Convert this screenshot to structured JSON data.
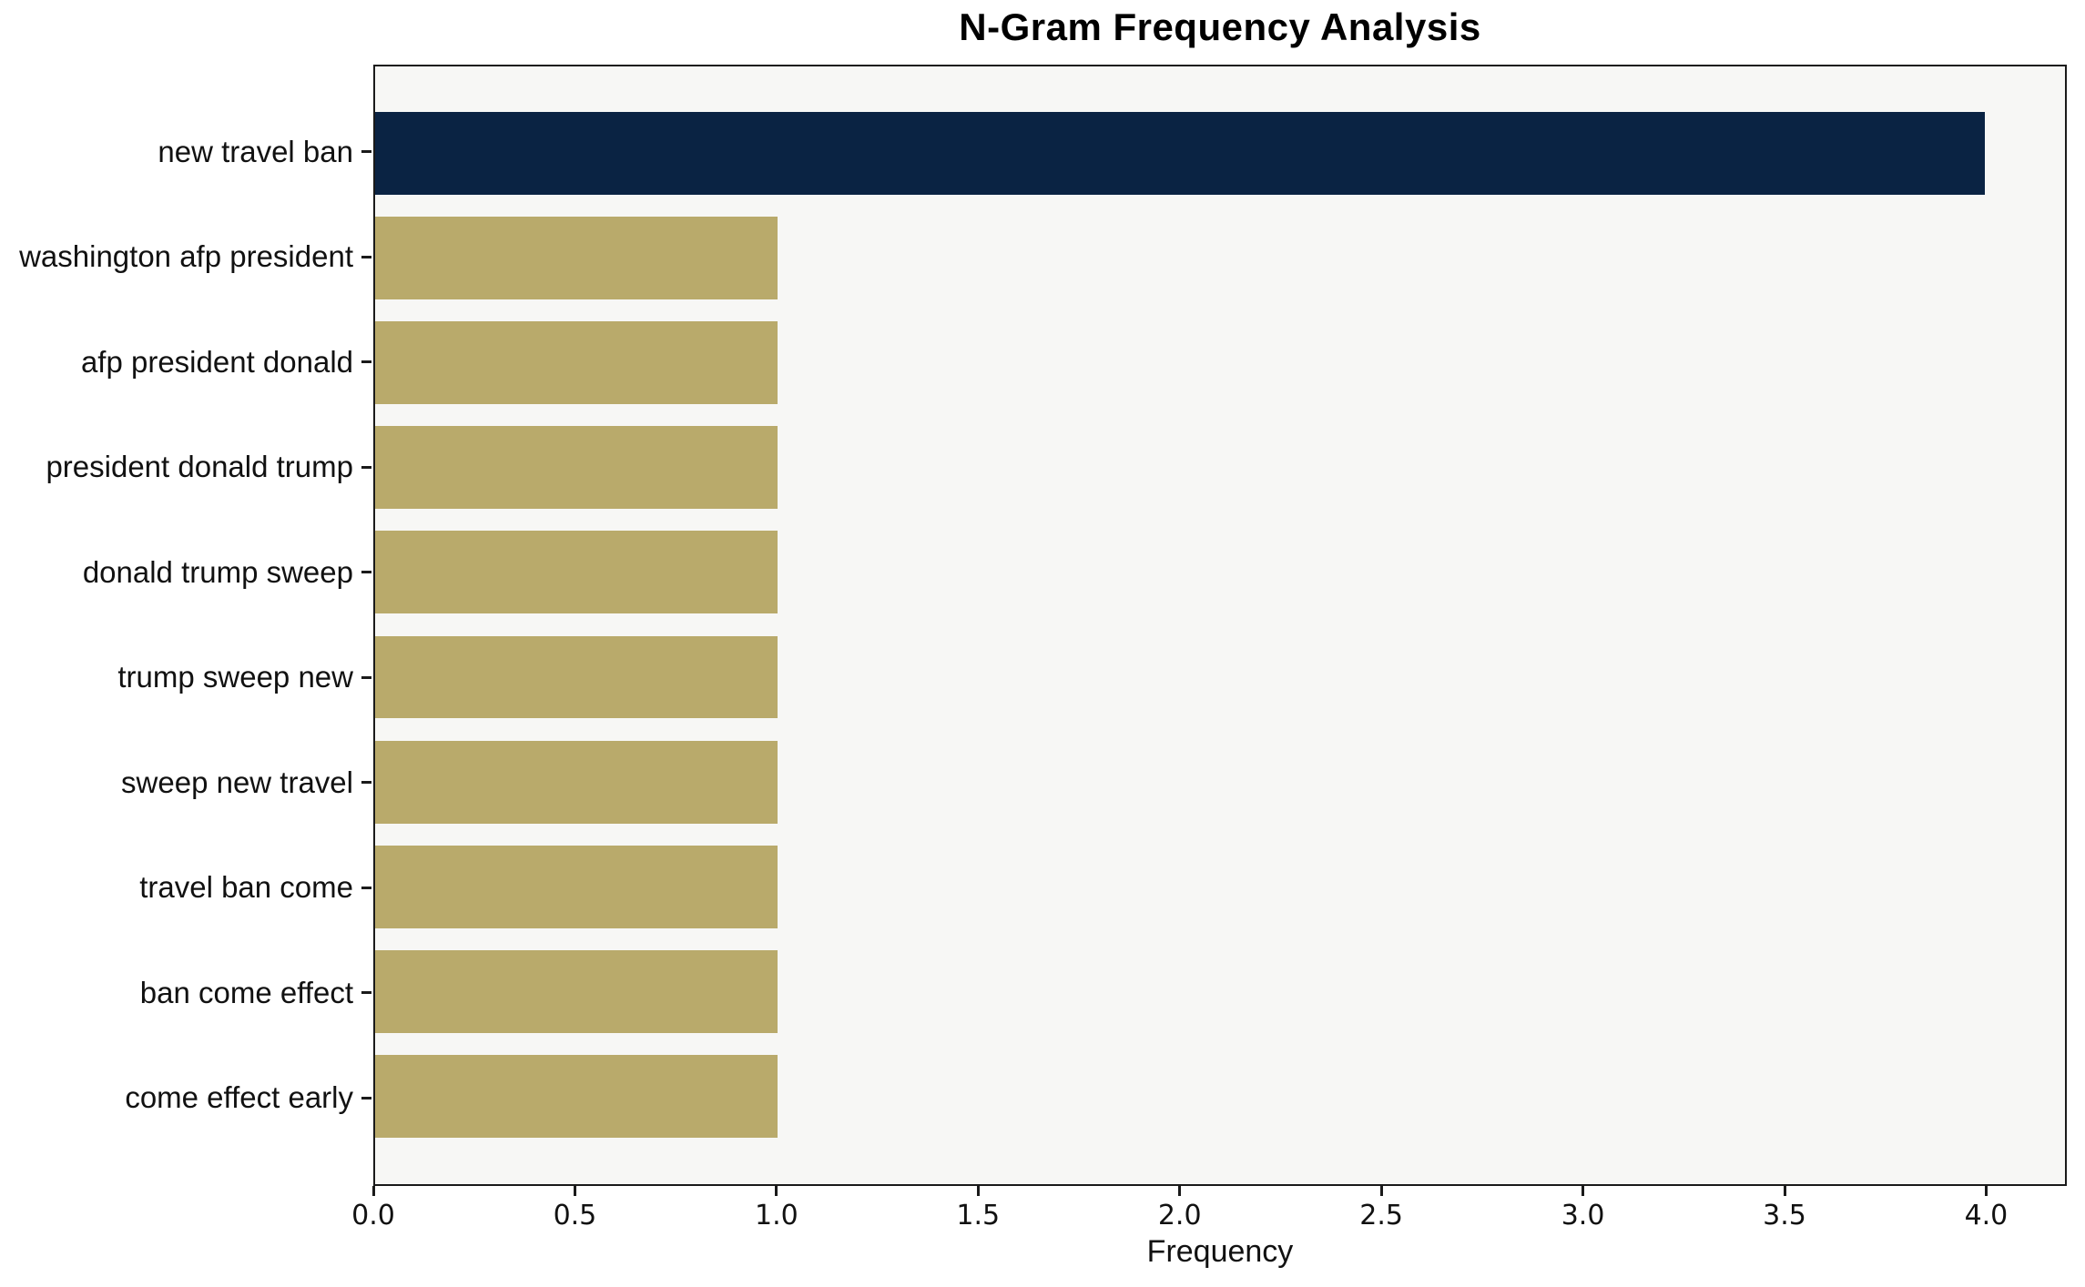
{
  "chart_data": {
    "type": "bar",
    "orientation": "horizontal",
    "title": "N-Gram Frequency Analysis",
    "xlabel": "Frequency",
    "ylabel": "",
    "categories": [
      "new travel ban",
      "washington afp president",
      "afp president donald",
      "president donald trump",
      "donald trump sweep",
      "trump sweep new",
      "sweep new travel",
      "travel ban come",
      "ban come effect",
      "come effect early"
    ],
    "values": [
      4,
      1,
      1,
      1,
      1,
      1,
      1,
      1,
      1,
      1
    ],
    "xlim": [
      0,
      4.2
    ],
    "xticks": [
      0,
      0.5,
      1,
      1.5,
      2,
      2.5,
      3,
      3.5,
      4
    ],
    "xtick_labels": [
      "0.0",
      "0.5",
      "1.0",
      "1.5",
      "2.0",
      "2.5",
      "3.0",
      "3.5",
      "4.0"
    ],
    "grid": false,
    "legend": null,
    "bar_colors": [
      "#0a2343",
      "#b9aa6b",
      "#b9aa6b",
      "#b9aa6b",
      "#b9aa6b",
      "#b9aa6b",
      "#b9aa6b",
      "#b9aa6b",
      "#b9aa6b",
      "#b9aa6b"
    ],
    "colors": {
      "highlight_bar": "#0a2343",
      "default_bar": "#b9aa6b",
      "plot_background": "#f7f7f5",
      "figure_background": "#ffffff",
      "spine": "#1a1a1a",
      "text": "#111111"
    }
  }
}
